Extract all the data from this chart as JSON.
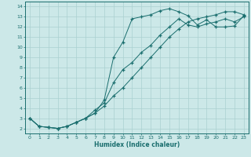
{
  "xlabel": "Humidex (Indice chaleur)",
  "bg_color": "#cce8e8",
  "line_color": "#1a6e6e",
  "grid_color": "#aad0d0",
  "xlim": [
    -0.5,
    23.5
  ],
  "ylim": [
    1.5,
    14.5
  ],
  "xticks": [
    0,
    1,
    2,
    3,
    4,
    5,
    6,
    7,
    8,
    9,
    10,
    11,
    12,
    13,
    14,
    15,
    16,
    17,
    18,
    19,
    20,
    21,
    22,
    23
  ],
  "yticks": [
    2,
    3,
    4,
    5,
    6,
    7,
    8,
    9,
    10,
    11,
    12,
    13,
    14
  ],
  "line1_x": [
    0,
    1,
    2,
    3,
    4,
    5,
    6,
    7,
    8,
    9,
    10,
    11,
    12,
    13,
    14,
    15,
    16,
    17,
    18,
    19,
    20,
    21,
    22,
    23
  ],
  "line1_y": [
    3.0,
    2.2,
    2.1,
    2.0,
    2.2,
    2.6,
    3.0,
    3.5,
    4.8,
    9.0,
    10.5,
    12.8,
    13.0,
    13.2,
    13.6,
    13.8,
    13.5,
    13.1,
    12.2,
    12.7,
    12.0,
    12.0,
    12.1,
    13.1
  ],
  "line2_x": [
    0,
    1,
    2,
    3,
    4,
    5,
    6,
    7,
    8,
    9,
    10,
    11,
    12,
    13,
    14,
    15,
    16,
    17,
    18,
    19,
    20,
    21,
    22,
    23
  ],
  "line2_y": [
    3.0,
    2.2,
    2.1,
    2.0,
    2.2,
    2.6,
    3.0,
    3.8,
    4.5,
    6.5,
    7.8,
    8.5,
    9.5,
    10.2,
    11.2,
    12.0,
    12.8,
    12.2,
    12.0,
    12.3,
    12.5,
    12.8,
    12.5,
    13.0
  ],
  "line3_x": [
    0,
    1,
    2,
    3,
    4,
    5,
    6,
    7,
    8,
    9,
    10,
    11,
    12,
    13,
    14,
    15,
    16,
    17,
    18,
    19,
    20,
    21,
    22,
    23
  ],
  "line3_y": [
    3.0,
    2.2,
    2.1,
    2.0,
    2.2,
    2.6,
    3.0,
    3.5,
    4.2,
    5.2,
    6.0,
    7.0,
    8.0,
    9.0,
    10.0,
    11.0,
    11.8,
    12.5,
    12.8,
    13.0,
    13.2,
    13.5,
    13.5,
    13.2
  ]
}
